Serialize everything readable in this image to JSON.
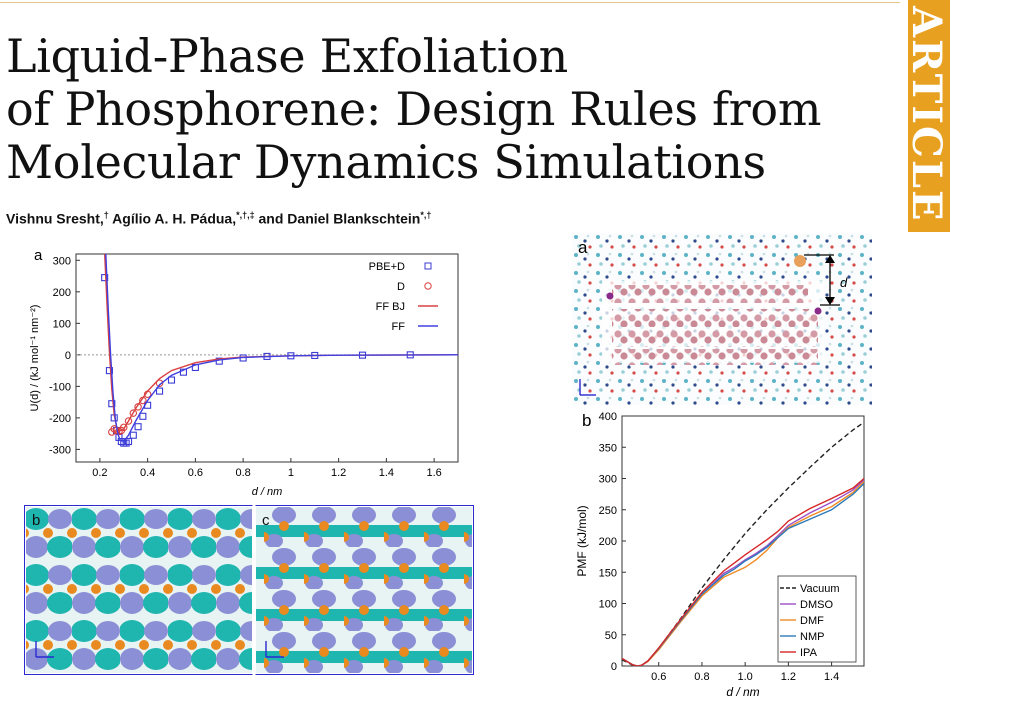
{
  "title_lines": [
    "Liquid-Phase Exfoliation",
    "of Phosphorene: Design Rules from",
    "Molecular Dynamics Simulations"
  ],
  "banner": "ARTICLE",
  "authors": {
    "a1": "Vishnu Sresht,",
    "a1_sup": "†",
    "a2": "Agílio A. H. Pádua,",
    "a2_sup": "*,†,‡",
    "a3": "and Daniel Blankschtein",
    "a3_sup": "*,†"
  },
  "panel_labels": {
    "a_left": "a",
    "b": "b",
    "c": "c",
    "a_right": "a",
    "b_right": "b",
    "d_label": "d"
  },
  "chart_data": [
    {
      "type": "line",
      "panel": "a",
      "xlabel": "d / nm",
      "ylabel": "U(d) / (kJ mol⁻¹ nm⁻²)",
      "xlim": [
        0.1,
        1.7
      ],
      "ylim": [
        -340,
        320
      ],
      "xticks": [
        0.2,
        0.4,
        0.6,
        0.8,
        1.0,
        1.2,
        1.4,
        1.6
      ],
      "xtick_labels": [
        "0.2",
        "0.4",
        "0.6",
        "0.8",
        "1",
        "1.2",
        "1.4",
        "1.6"
      ],
      "yticks": [
        300,
        200,
        100,
        0,
        -100,
        -200,
        -300
      ],
      "ytick_labels": [
        "300",
        "200",
        "100",
        "0",
        "-100",
        "-200",
        "-300"
      ],
      "legend_position": "top-right",
      "series": [
        {
          "name": "PBE+D",
          "style": "square",
          "color": "#3b3bd6",
          "x": [
            0.22,
            0.24,
            0.25,
            0.26,
            0.27,
            0.28,
            0.29,
            0.3,
            0.31,
            0.32,
            0.34,
            0.36,
            0.38,
            0.4,
            0.45,
            0.5,
            0.55,
            0.6,
            0.7,
            0.8,
            0.9,
            1.0,
            1.1,
            1.3,
            1.5
          ],
          "y": [
            245,
            -50,
            -155,
            -200,
            -240,
            -262,
            -275,
            -280,
            -280,
            -275,
            -255,
            -228,
            -195,
            -160,
            -115,
            -80,
            -55,
            -40,
            -20,
            -10,
            -5,
            -3,
            -2,
            -1,
            0
          ]
        },
        {
          "name": "D",
          "style": "circle",
          "color": "#d94040",
          "x": [
            0.25,
            0.26,
            0.27,
            0.28,
            0.29,
            0.3,
            0.32,
            0.34,
            0.36,
            0.38,
            0.4,
            0.45
          ],
          "y": [
            -245,
            -235,
            -240,
            -243,
            -240,
            -230,
            -210,
            -185,
            -165,
            -145,
            -125,
            -90
          ]
        },
        {
          "name": "FF BJ",
          "style": "line",
          "color": "#d94040",
          "x": [
            0.22,
            0.23,
            0.24,
            0.25,
            0.26,
            0.27,
            0.28,
            0.3,
            0.32,
            0.35,
            0.4,
            0.45,
            0.5,
            0.6,
            0.7,
            0.8,
            1.0,
            1.2,
            1.7
          ],
          "y": [
            320,
            160,
            10,
            -110,
            -190,
            -228,
            -242,
            -235,
            -210,
            -170,
            -115,
            -75,
            -50,
            -25,
            -13,
            -7,
            -3,
            -1,
            0
          ]
        },
        {
          "name": "FF",
          "style": "line",
          "color": "#4040e0",
          "x": [
            0.225,
            0.235,
            0.245,
            0.255,
            0.265,
            0.275,
            0.285,
            0.3,
            0.32,
            0.35,
            0.4,
            0.45,
            0.5,
            0.6,
            0.7,
            0.8,
            1.0,
            1.2,
            1.7
          ],
          "y": [
            320,
            150,
            0,
            -120,
            -205,
            -250,
            -272,
            -275,
            -255,
            -210,
            -145,
            -95,
            -65,
            -32,
            -16,
            -8,
            -3,
            -1,
            0
          ]
        }
      ]
    },
    {
      "type": "line",
      "panel": "b",
      "xlabel": "d / nm",
      "ylabel": "PMF (kJ/mol)",
      "xlim": [
        0.43,
        1.55
      ],
      "ylim": [
        0,
        400
      ],
      "xticks": [
        0.6,
        0.8,
        1.0,
        1.2,
        1.4
      ],
      "xtick_labels": [
        "0.6",
        "0.8",
        "1.0",
        "1.2",
        "1.4"
      ],
      "yticks": [
        0,
        50,
        100,
        150,
        200,
        250,
        300,
        350,
        400
      ],
      "ytick_labels": [
        "0",
        "50",
        "100",
        "150",
        "200",
        "250",
        "300",
        "350",
        "400"
      ],
      "legend_position": "bottom-right",
      "series": [
        {
          "name": "Vacuum",
          "color": "#222222",
          "dash": true,
          "x": [
            0.43,
            0.46,
            0.48,
            0.5,
            0.52,
            0.55,
            0.6,
            0.7,
            0.8,
            0.9,
            1.0,
            1.1,
            1.2,
            1.3,
            1.4,
            1.5,
            1.55
          ],
          "y": [
            10,
            5,
            1,
            0,
            1,
            8,
            28,
            75,
            125,
            170,
            212,
            250,
            285,
            318,
            350,
            378,
            390
          ]
        },
        {
          "name": "DMSO",
          "color": "#9b4fc8",
          "dash": false,
          "x": [
            0.43,
            0.46,
            0.48,
            0.5,
            0.52,
            0.55,
            0.6,
            0.7,
            0.8,
            0.9,
            0.95,
            1.0,
            1.05,
            1.1,
            1.15,
            1.2,
            1.3,
            1.4,
            1.5,
            1.55
          ],
          "y": [
            12,
            6,
            2,
            0,
            1,
            8,
            28,
            72,
            115,
            148,
            158,
            170,
            180,
            192,
            208,
            225,
            245,
            262,
            282,
            298
          ]
        },
        {
          "name": "DMF",
          "color": "#f08a24",
          "dash": false,
          "x": [
            0.43,
            0.46,
            0.48,
            0.5,
            0.52,
            0.55,
            0.6,
            0.7,
            0.8,
            0.9,
            0.95,
            1.0,
            1.05,
            1.1,
            1.15,
            1.2,
            1.3,
            1.4,
            1.5,
            1.55
          ],
          "y": [
            12,
            6,
            2,
            0,
            1,
            7,
            26,
            70,
            112,
            142,
            150,
            158,
            170,
            185,
            205,
            222,
            240,
            255,
            278,
            295
          ]
        },
        {
          "name": "NMP",
          "color": "#2b7bb9",
          "dash": false,
          "x": [
            0.43,
            0.46,
            0.48,
            0.5,
            0.52,
            0.55,
            0.6,
            0.7,
            0.8,
            0.9,
            0.95,
            1.0,
            1.05,
            1.1,
            1.15,
            1.2,
            1.3,
            1.4,
            1.5,
            1.55
          ],
          "y": [
            12,
            6,
            2,
            0,
            1,
            8,
            28,
            72,
            115,
            145,
            155,
            168,
            178,
            190,
            205,
            220,
            235,
            250,
            275,
            292
          ]
        },
        {
          "name": "IPA",
          "color": "#d62728",
          "dash": false,
          "x": [
            0.43,
            0.46,
            0.48,
            0.5,
            0.52,
            0.55,
            0.6,
            0.7,
            0.8,
            0.9,
            0.95,
            1.0,
            1.05,
            1.1,
            1.15,
            1.2,
            1.3,
            1.4,
            1.5,
            1.55
          ],
          "y": [
            12,
            6,
            2,
            0,
            1,
            8,
            29,
            74,
            118,
            152,
            165,
            178,
            190,
            202,
            215,
            232,
            252,
            268,
            285,
            300
          ]
        }
      ]
    }
  ]
}
